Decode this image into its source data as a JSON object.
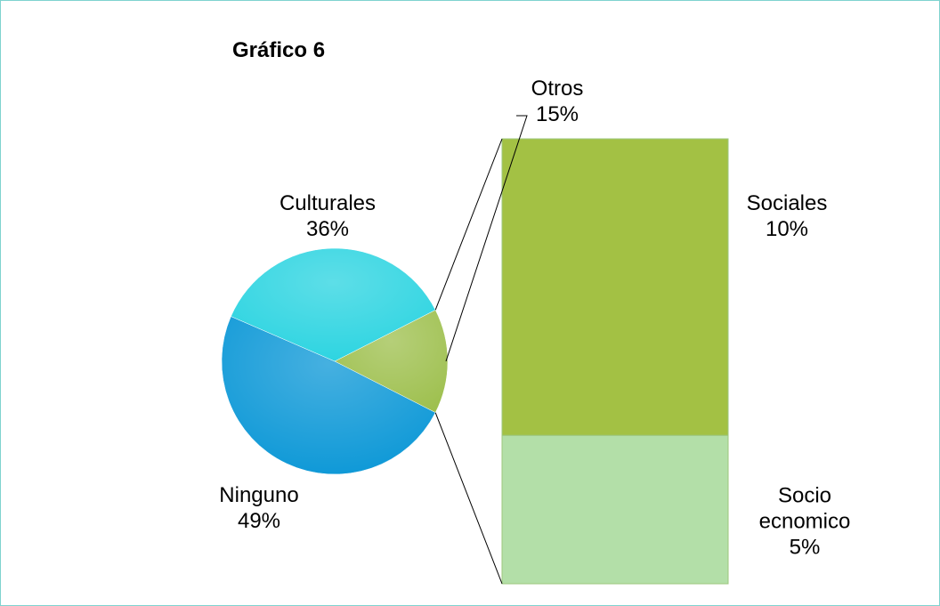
{
  "chart_data": {
    "type": "bar-of-pie",
    "title": "Gráfico 6",
    "categories": [
      "Culturales",
      "Ninguno",
      "Otros"
    ],
    "values": [
      36,
      49,
      15
    ],
    "value_labels": [
      "36%",
      "49%",
      "15%"
    ],
    "colors": [
      "#27d3e0",
      "#0896d6",
      "#9dbf4c"
    ],
    "secondary": {
      "categories": [
        "Sociales",
        "Socio ecnomico"
      ],
      "values": [
        10,
        5
      ],
      "value_labels": [
        "10%",
        "5%"
      ],
      "colors": [
        "#a3c144",
        "#b3dfa8"
      ]
    }
  }
}
